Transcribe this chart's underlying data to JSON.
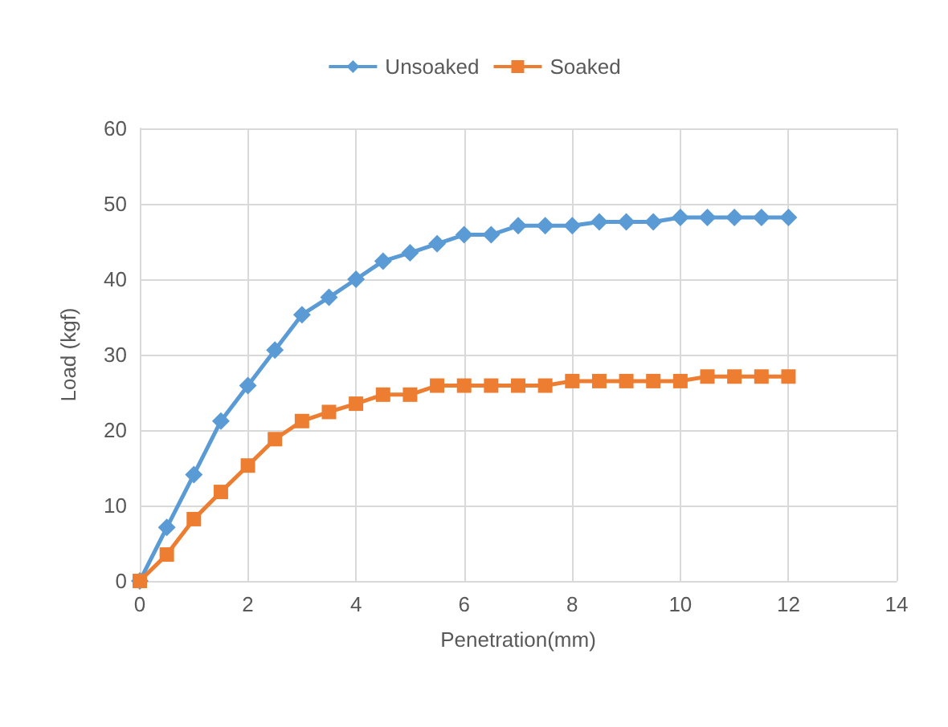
{
  "chart_data": {
    "type": "line",
    "xlabel": "Penetration(mm)",
    "ylabel": "Load (kgf)",
    "x": [
      0,
      0.5,
      1,
      1.5,
      2,
      2.5,
      3,
      3.5,
      4,
      4.5,
      5,
      5.5,
      6,
      6.5,
      7,
      7.5,
      8,
      8.5,
      9,
      9.5,
      10,
      10.5,
      11,
      11.5,
      12
    ],
    "series": [
      {
        "name": "Unsoaked",
        "color": "#5b9bd5",
        "marker": "diamond",
        "values": [
          0,
          7.1,
          14.1,
          21.2,
          25.9,
          30.6,
          35.3,
          37.6,
          40,
          42.4,
          43.5,
          44.7,
          45.9,
          45.9,
          47.1,
          47.1,
          47.1,
          47.6,
          47.6,
          47.6,
          48.2,
          48.2,
          48.2,
          48.2,
          48.2
        ]
      },
      {
        "name": "Soaked",
        "color": "#ed7d31",
        "marker": "square",
        "values": [
          0,
          3.5,
          8.2,
          11.8,
          15.3,
          18.8,
          21.2,
          22.4,
          23.5,
          24.7,
          24.7,
          25.9,
          25.9,
          25.9,
          25.9,
          25.9,
          26.5,
          26.5,
          26.5,
          26.5,
          26.5,
          27.1,
          27.1,
          27.1,
          27.1
        ]
      }
    ],
    "xlim": [
      0,
      14
    ],
    "xticks": [
      0,
      2,
      4,
      6,
      8,
      10,
      12,
      14
    ],
    "ylim": [
      0,
      60
    ],
    "yticks": [
      0,
      10,
      20,
      30,
      40,
      50,
      60
    ],
    "grid": true,
    "legend": "top"
  }
}
